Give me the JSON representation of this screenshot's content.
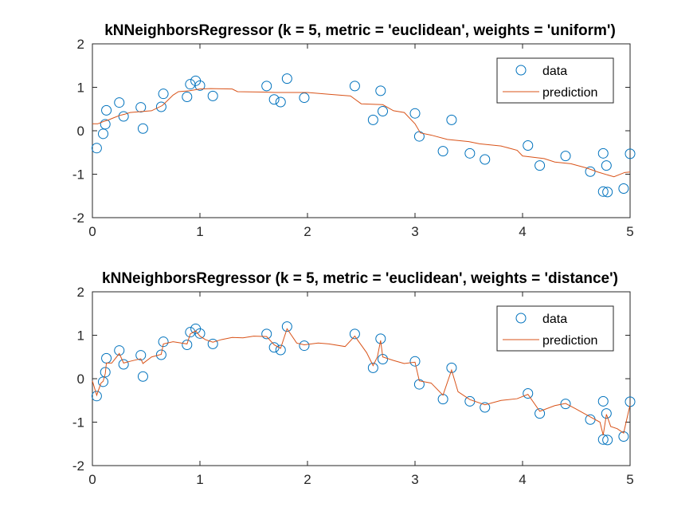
{
  "colors": {
    "data": "#0072BD",
    "prediction": "#D95319",
    "axis": "#262626",
    "legend_border": "#262626"
  },
  "chart_data": [
    {
      "type": "scatter",
      "title": "kNNeighborsRegressor (k = 5, metric = 'euclidean', weights = 'uniform')",
      "xlabel": "",
      "ylabel": "",
      "xlim": [
        0,
        5
      ],
      "ylim": [
        -2,
        2
      ],
      "xticks": [
        0,
        1,
        2,
        3,
        4,
        5
      ],
      "yticks": [
        2,
        1,
        0,
        -1,
        -2
      ],
      "grid": false,
      "legend_position": "top-right",
      "series": [
        {
          "name": "data",
          "kind": "scatter",
          "marker": "circle-open",
          "points": [
            [
              0.04,
              -0.4
            ],
            [
              0.1,
              -0.07
            ],
            [
              0.12,
              0.15
            ],
            [
              0.13,
              0.47
            ],
            [
              0.25,
              0.65
            ],
            [
              0.29,
              0.33
            ],
            [
              0.45,
              0.54
            ],
            [
              0.47,
              0.05
            ],
            [
              0.64,
              0.55
            ],
            [
              0.66,
              0.85
            ],
            [
              0.88,
              0.78
            ],
            [
              0.91,
              1.07
            ],
            [
              0.96,
              1.15
            ],
            [
              1.0,
              1.04
            ],
            [
              1.12,
              0.8
            ],
            [
              1.62,
              1.03
            ],
            [
              1.69,
              0.72
            ],
            [
              1.75,
              0.66
            ],
            [
              1.81,
              1.2
            ],
            [
              1.97,
              0.76
            ],
            [
              2.44,
              1.03
            ],
            [
              2.61,
              0.25
            ],
            [
              2.68,
              0.92
            ],
            [
              2.7,
              0.45
            ],
            [
              3.0,
              0.4
            ],
            [
              3.04,
              -0.13
            ],
            [
              3.26,
              -0.47
            ],
            [
              3.34,
              0.25
            ],
            [
              3.51,
              -0.52
            ],
            [
              3.65,
              -0.66
            ],
            [
              4.05,
              -0.34
            ],
            [
              4.16,
              -0.8
            ],
            [
              4.4,
              -0.58
            ],
            [
              4.63,
              -0.94
            ],
            [
              4.75,
              -1.4
            ],
            [
              4.75,
              -0.52
            ],
            [
              4.79,
              -1.41
            ],
            [
              4.78,
              -0.8
            ],
            [
              4.94,
              -1.33
            ],
            [
              5.0,
              -0.53
            ]
          ]
        },
        {
          "name": "prediction",
          "kind": "line",
          "points": [
            [
              0,
              0.16
            ],
            [
              0.05,
              0.16
            ],
            [
              0.1,
              0.21
            ],
            [
              0.15,
              0.25
            ],
            [
              0.2,
              0.3
            ],
            [
              0.25,
              0.35
            ],
            [
              0.3,
              0.38
            ],
            [
              0.35,
              0.42
            ],
            [
              0.45,
              0.44
            ],
            [
              0.55,
              0.46
            ],
            [
              0.65,
              0.58
            ],
            [
              0.7,
              0.7
            ],
            [
              0.75,
              0.82
            ],
            [
              0.8,
              0.9
            ],
            [
              0.9,
              0.92
            ],
            [
              1.0,
              0.96
            ],
            [
              1.1,
              0.97
            ],
            [
              1.3,
              0.96
            ],
            [
              1.35,
              0.9
            ],
            [
              1.6,
              0.89
            ],
            [
              1.7,
              0.88
            ],
            [
              2.0,
              0.88
            ],
            [
              2.2,
              0.84
            ],
            [
              2.4,
              0.8
            ],
            [
              2.5,
              0.62
            ],
            [
              2.7,
              0.6
            ],
            [
              2.8,
              0.46
            ],
            [
              2.9,
              0.42
            ],
            [
              3.0,
              0.16
            ],
            [
              3.05,
              -0.05
            ],
            [
              3.15,
              -0.1
            ],
            [
              3.3,
              -0.2
            ],
            [
              3.5,
              -0.25
            ],
            [
              3.6,
              -0.3
            ],
            [
              3.8,
              -0.35
            ],
            [
              3.95,
              -0.45
            ],
            [
              4.0,
              -0.58
            ],
            [
              4.2,
              -0.64
            ],
            [
              4.3,
              -0.72
            ],
            [
              4.45,
              -0.76
            ],
            [
              4.6,
              -0.86
            ],
            [
              4.7,
              -0.95
            ],
            [
              4.85,
              -1.06
            ],
            [
              4.95,
              -0.96
            ],
            [
              5.0,
              -0.95
            ]
          ]
        }
      ]
    },
    {
      "type": "scatter",
      "title": "kNNeighborsRegressor (k = 5, metric = 'euclidean', weights = 'distance')",
      "xlabel": "",
      "ylabel": "",
      "xlim": [
        0,
        5
      ],
      "ylim": [
        -2,
        2
      ],
      "xticks": [
        0,
        1,
        2,
        3,
        4,
        5
      ],
      "yticks": [
        2,
        1,
        0,
        -1,
        -2
      ],
      "grid": false,
      "legend_position": "top-right",
      "series": [
        {
          "name": "data",
          "kind": "scatter",
          "marker": "circle-open",
          "points": [
            [
              0.04,
              -0.4
            ],
            [
              0.1,
              -0.07
            ],
            [
              0.12,
              0.15
            ],
            [
              0.13,
              0.47
            ],
            [
              0.25,
              0.65
            ],
            [
              0.29,
              0.33
            ],
            [
              0.45,
              0.54
            ],
            [
              0.47,
              0.05
            ],
            [
              0.64,
              0.55
            ],
            [
              0.66,
              0.85
            ],
            [
              0.88,
              0.78
            ],
            [
              0.91,
              1.07
            ],
            [
              0.96,
              1.15
            ],
            [
              1.0,
              1.04
            ],
            [
              1.12,
              0.8
            ],
            [
              1.62,
              1.03
            ],
            [
              1.69,
              0.72
            ],
            [
              1.75,
              0.66
            ],
            [
              1.81,
              1.2
            ],
            [
              1.97,
              0.76
            ],
            [
              2.44,
              1.03
            ],
            [
              2.61,
              0.25
            ],
            [
              2.68,
              0.92
            ],
            [
              2.7,
              0.45
            ],
            [
              3.0,
              0.4
            ],
            [
              3.04,
              -0.13
            ],
            [
              3.26,
              -0.47
            ],
            [
              3.34,
              0.25
            ],
            [
              3.51,
              -0.52
            ],
            [
              3.65,
              -0.66
            ],
            [
              4.05,
              -0.34
            ],
            [
              4.16,
              -0.8
            ],
            [
              4.4,
              -0.58
            ],
            [
              4.63,
              -0.94
            ],
            [
              4.75,
              -1.4
            ],
            [
              4.75,
              -0.52
            ],
            [
              4.79,
              -1.41
            ],
            [
              4.78,
              -0.8
            ],
            [
              4.94,
              -1.33
            ],
            [
              5.0,
              -0.53
            ]
          ]
        },
        {
          "name": "prediction",
          "kind": "line",
          "points": [
            [
              0,
              -0.05
            ],
            [
              0.04,
              -0.38
            ],
            [
              0.08,
              -0.1
            ],
            [
              0.1,
              -0.06
            ],
            [
              0.12,
              0.12
            ],
            [
              0.13,
              0.36
            ],
            [
              0.18,
              0.36
            ],
            [
              0.25,
              0.58
            ],
            [
              0.29,
              0.36
            ],
            [
              0.35,
              0.4
            ],
            [
              0.45,
              0.46
            ],
            [
              0.47,
              0.35
            ],
            [
              0.55,
              0.5
            ],
            [
              0.64,
              0.56
            ],
            [
              0.66,
              0.8
            ],
            [
              0.75,
              0.85
            ],
            [
              0.88,
              0.8
            ],
            [
              0.91,
              1.03
            ],
            [
              0.96,
              1.1
            ],
            [
              1.0,
              0.98
            ],
            [
              1.05,
              0.9
            ],
            [
              1.12,
              0.84
            ],
            [
              1.2,
              0.9
            ],
            [
              1.3,
              0.95
            ],
            [
              1.4,
              0.94
            ],
            [
              1.5,
              0.98
            ],
            [
              1.62,
              0.97
            ],
            [
              1.69,
              0.78
            ],
            [
              1.75,
              0.7
            ],
            [
              1.81,
              1.15
            ],
            [
              1.9,
              0.82
            ],
            [
              1.97,
              0.78
            ],
            [
              2.1,
              0.82
            ],
            [
              2.2,
              0.8
            ],
            [
              2.35,
              0.74
            ],
            [
              2.44,
              0.98
            ],
            [
              2.55,
              0.6
            ],
            [
              2.61,
              0.3
            ],
            [
              2.65,
              0.5
            ],
            [
              2.68,
              0.88
            ],
            [
              2.7,
              0.5
            ],
            [
              2.8,
              0.42
            ],
            [
              2.9,
              0.35
            ],
            [
              3.0,
              0.38
            ],
            [
              3.04,
              -0.05
            ],
            [
              3.15,
              -0.1
            ],
            [
              3.26,
              -0.38
            ],
            [
              3.34,
              0.2
            ],
            [
              3.4,
              -0.3
            ],
            [
              3.51,
              -0.48
            ],
            [
              3.65,
              -0.6
            ],
            [
              3.8,
              -0.5
            ],
            [
              3.95,
              -0.46
            ],
            [
              4.05,
              -0.36
            ],
            [
              4.16,
              -0.75
            ],
            [
              4.3,
              -0.62
            ],
            [
              4.4,
              -0.57
            ],
            [
              4.5,
              -0.7
            ],
            [
              4.63,
              -0.88
            ],
            [
              4.72,
              -1.0
            ],
            [
              4.75,
              -1.3
            ],
            [
              4.78,
              -0.82
            ],
            [
              4.82,
              -1.1
            ],
            [
              4.88,
              -1.15
            ],
            [
              4.94,
              -1.25
            ],
            [
              5.0,
              -0.6
            ]
          ]
        }
      ]
    }
  ]
}
